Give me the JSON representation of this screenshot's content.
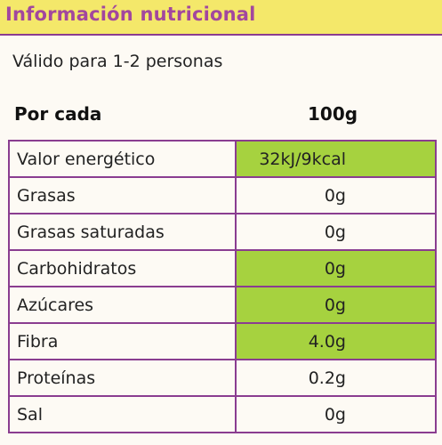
{
  "header": {
    "title": "Información nutricional"
  },
  "subtitle": "Válido para 1-2 personas",
  "columns": {
    "per": "Por cada",
    "amount": "100g"
  },
  "colors": {
    "header_bg": "#f4e86a",
    "header_text": "#a2479e",
    "border": "#8a3d90",
    "highlight": "#a6d23f"
  },
  "rows": [
    {
      "label": "Valor energético",
      "value": "32kJ/9kcal",
      "highlight": true
    },
    {
      "label": "Grasas",
      "value": "0g",
      "highlight": false
    },
    {
      "label": "Grasas saturadas",
      "value": "0g",
      "highlight": false
    },
    {
      "label": "Carbohidratos",
      "value": "0g",
      "highlight": true
    },
    {
      "label": "Azúcares",
      "value": "0g",
      "highlight": true
    },
    {
      "label": "Fibra",
      "value": "4.0g",
      "highlight": true
    },
    {
      "label": "Proteínas",
      "value": "0.2g",
      "highlight": false
    },
    {
      "label": "Sal",
      "value": "0g",
      "highlight": false
    }
  ]
}
